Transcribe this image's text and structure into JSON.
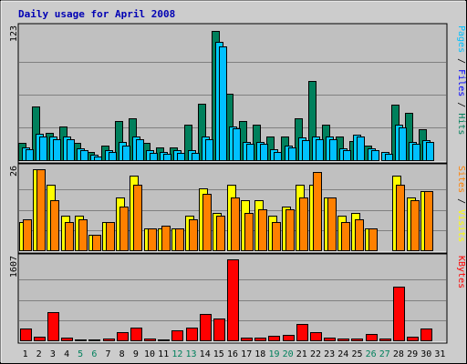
{
  "colors": {
    "page_bg": "#cccccc",
    "plot_bg": "#c0c0c0",
    "title": "#0000b4",
    "hits": "#00805c",
    "files": "#00ccff",
    "pages": "#00c0ff",
    "visits": "#ffff00",
    "sites": "#ff8000",
    "kbytes": "#ff0000",
    "weekend_day": "#00805c",
    "weekday_day": "#000000"
  },
  "chart_data": {
    "title": "Daily usage for April 2008",
    "days": [
      "1",
      "2",
      "3",
      "4",
      "5",
      "6",
      "7",
      "8",
      "9",
      "10",
      "11",
      "12",
      "13",
      "14",
      "15",
      "16",
      "17",
      "18",
      "19",
      "20",
      "21",
      "22",
      "23",
      "24",
      "25",
      "26",
      "27",
      "28",
      "29",
      "30",
      "31"
    ],
    "weekend_days": [
      "5",
      "6",
      "12",
      "13",
      "19",
      "20",
      "26",
      "27"
    ],
    "panels": [
      {
        "id": "hits_files_pages",
        "type": "bar",
        "ymax_label": "123",
        "ymax": 123,
        "right_label_parts": [
          {
            "text": "Pages",
            "color": "#00c0ff"
          },
          {
            "text": " / ",
            "color": "#000000"
          },
          {
            "text": "Files",
            "color": "#0000ff"
          },
          {
            "text": " / ",
            "color": "#000000"
          },
          {
            "text": "Hits",
            "color": "#00805c"
          }
        ],
        "series": [
          {
            "key": "hits",
            "color": "#00805c",
            "values": [
              16,
              50,
              26,
              32,
              16,
              8,
              14,
              37,
              39,
              16,
              12,
              12,
              33,
              53,
              121,
              62,
              37,
              33,
              22,
              22,
              39,
              74,
              33,
              22,
              18,
              14,
              0,
              52,
              44,
              29,
              0
            ]
          },
          {
            "key": "files",
            "color": "#00ccff",
            "values": [
              12,
              25,
              22,
              22,
              11,
              5,
              9,
              17,
              22,
              9,
              8,
              9,
              9,
              22,
              111,
              32,
              17,
              17,
              10,
              14,
              21,
              22,
              22,
              11,
              24,
              11,
              8,
              33,
              17,
              19,
              0
            ]
          },
          {
            "key": "pages",
            "color": "#00c0ff",
            "values": [
              10,
              22,
              20,
              20,
              9,
              3,
              8,
              14,
              20,
              7,
              6,
              7,
              7,
              20,
              107,
              30,
              15,
              15,
              8,
              12,
              19,
              20,
              20,
              9,
              22,
              9,
              6,
              31,
              15,
              17,
              0
            ]
          }
        ]
      },
      {
        "id": "visits_sites",
        "type": "bar",
        "ymax_label": "26",
        "ymax": 26,
        "right_label_parts": [
          {
            "text": "Sites",
            "color": "#ff8000"
          },
          {
            "text": " / ",
            "color": "#000000"
          },
          {
            "text": "Visits",
            "color": "#ffff00"
          }
        ],
        "series": [
          {
            "key": "visits",
            "color": "#ffff00",
            "values": [
              9,
              26,
              21,
              11,
              11,
              5,
              9,
              17,
              24,
              7,
              7,
              7,
              11,
              20,
              12,
              21,
              16,
              16,
              11,
              14,
              21,
              21,
              17,
              11,
              12,
              7,
              0,
              24,
              17,
              19,
              0
            ]
          },
          {
            "key": "sites",
            "color": "#ff8000",
            "values": [
              10,
              26,
              16,
              9,
              10,
              5,
              9,
              14,
              21,
              7,
              8,
              7,
              10,
              18,
              11,
              17,
              12,
              13,
              9,
              13,
              17,
              25,
              17,
              9,
              10,
              7,
              0,
              21,
              16,
              19,
              0
            ]
          }
        ]
      },
      {
        "id": "kbytes",
        "type": "bar",
        "ymax_label": "1607",
        "ymax": 1607,
        "right_label_parts": [
          {
            "text": "KBytes",
            "color": "#ff0000"
          }
        ],
        "series": [
          {
            "key": "kbytes",
            "color": "#ff0000",
            "values": [
              240,
              80,
              560,
              60,
              20,
              20,
              40,
              170,
              250,
              40,
              20,
              190,
              250,
              530,
              430,
              1607,
              60,
              60,
              90,
              110,
              330,
              170,
              60,
              40,
              40,
              120,
              40,
              1070,
              80,
              240,
              0
            ]
          }
        ]
      }
    ]
  }
}
